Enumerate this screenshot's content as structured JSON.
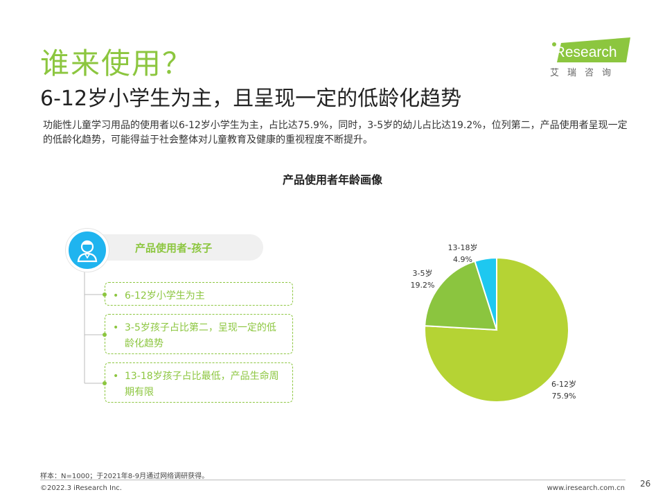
{
  "header": {
    "title": "谁来使用？",
    "subtitle": "6-12岁小学生为主，且呈现一定的低龄化趋势",
    "description": "功能性儿童学习用品的使用者以6-12岁小学生为主，占比达75.9%，同时，3-5岁的幼儿占比达19.2%，位列第二，产品使用者呈现一定的低龄化趋势，可能得益于社会整体对儿童教育及健康的重视程度不断提升。"
  },
  "logo": {
    "name": "iResearch",
    "subtext": "艾瑞咨询",
    "icon": "iresearch-logo-icon",
    "color": "#8cc63f"
  },
  "left_panel": {
    "heading": "产品使用者-孩子",
    "avatar_icon": "child-avatar-icon",
    "points": [
      "6-12岁小学生为主",
      "3-5岁孩子占比第二，呈现一定的低龄化趋势",
      "13-18岁孩子占比最低，产品生命周期有限"
    ]
  },
  "chart_data": {
    "type": "pie",
    "title": "产品使用者年龄画像",
    "slices": [
      {
        "label": "6-12岁",
        "value": 75.9,
        "value_label": "75.9%",
        "color": "#b5d334"
      },
      {
        "label": "3-5岁",
        "value": 19.2,
        "value_label": "19.2%",
        "color": "#8bc53f"
      },
      {
        "label": "13-18岁",
        "value": 4.9,
        "value_label": "4.9%",
        "color": "#1ec8f0"
      }
    ]
  },
  "footer": {
    "note": "样本：N=1000；于2021年8-9月通过网络调研获得。",
    "copyright": "©2022.3 iResearch Inc.",
    "website": "www.iresearch.com.cn",
    "page": "26"
  }
}
